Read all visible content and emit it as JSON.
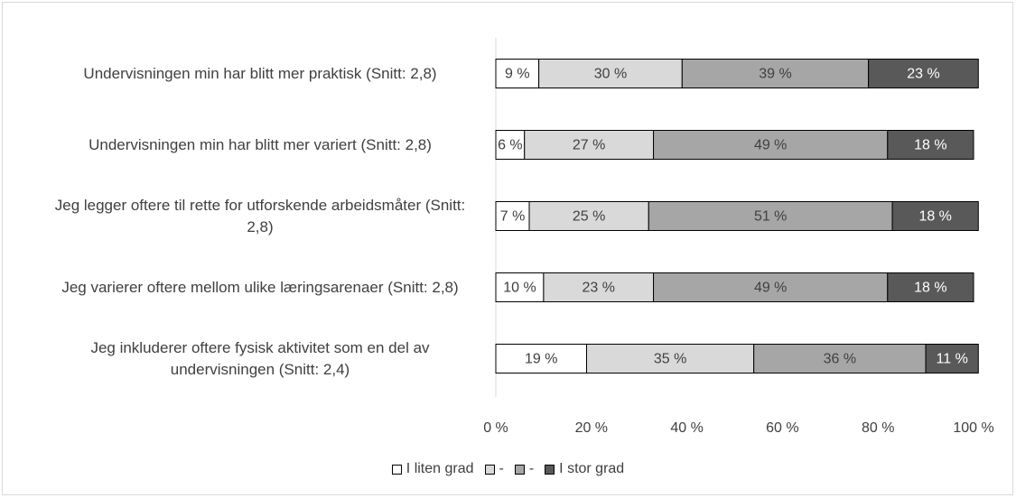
{
  "chart_data": {
    "type": "stacked_bar_horizontal",
    "categories": [
      "Undervisningen min har blitt mer praktisk (Snitt: 2,8)",
      "Undervisningen min har blitt mer variert (Snitt: 2,8)",
      "Jeg legger oftere til rette for utforskende arbeidsmåter (Snitt: 2,8)",
      "Jeg varierer oftere mellom ulike læringsarenaer (Snitt: 2,8)",
      "Jeg inkluderer oftere fysisk aktivitet som en del av undervisningen (Snitt: 2,4)"
    ],
    "series": [
      {
        "name": "I liten grad",
        "color": "#ffffff",
        "values": [
          9,
          6,
          7,
          10,
          19
        ],
        "value_labels": [
          "9 %",
          "6 %",
          "7 %",
          "10 %",
          "19 %"
        ]
      },
      {
        "name": "-",
        "color": "#d9d9d9",
        "values": [
          30,
          27,
          25,
          23,
          35
        ],
        "value_labels": [
          "30 %",
          "27 %",
          "25 %",
          "23 %",
          "35 %"
        ]
      },
      {
        "name": "-",
        "color": "#a6a6a6",
        "values": [
          39,
          49,
          51,
          49,
          36
        ],
        "value_labels": [
          "39 %",
          "49 %",
          "51 %",
          "49 %",
          "36 %"
        ]
      },
      {
        "name": "I stor grad",
        "color": "#595959",
        "values": [
          23,
          18,
          18,
          18,
          11
        ],
        "value_labels": [
          "23 %",
          "18 %",
          "18 %",
          "18 %",
          "11 %"
        ]
      }
    ],
    "xlim": [
      0,
      100
    ],
    "xticks": [
      {
        "value": 0,
        "label": "0 %"
      },
      {
        "value": 20,
        "label": "20 %"
      },
      {
        "value": 40,
        "label": "40 %"
      },
      {
        "value": 60,
        "label": "60 %"
      },
      {
        "value": 80,
        "label": "80 %"
      },
      {
        "value": 100,
        "label": "100 %"
      }
    ],
    "legend": "bottom"
  }
}
